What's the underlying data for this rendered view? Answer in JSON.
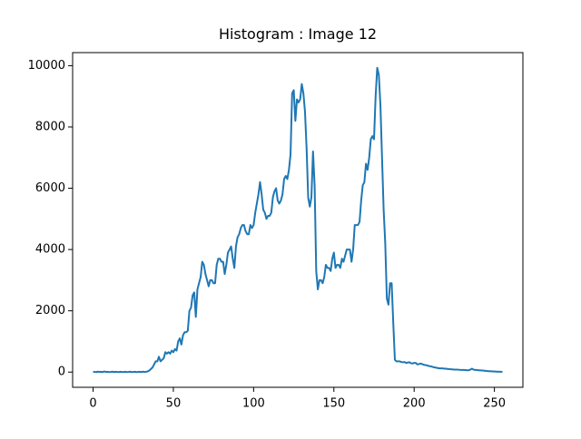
{
  "chart_data": {
    "type": "line",
    "title": "Histogram : Image 12",
    "color": "#1f77b4",
    "x": [
      0,
      1,
      2,
      3,
      4,
      5,
      6,
      7,
      8,
      9,
      10,
      11,
      12,
      13,
      14,
      15,
      16,
      17,
      18,
      19,
      20,
      21,
      22,
      23,
      24,
      25,
      26,
      27,
      28,
      29,
      30,
      31,
      32,
      33,
      34,
      35,
      36,
      37,
      38,
      39,
      40,
      41,
      42,
      43,
      44,
      45,
      46,
      47,
      48,
      49,
      50,
      51,
      52,
      53,
      54,
      55,
      56,
      57,
      58,
      59,
      60,
      61,
      62,
      63,
      64,
      65,
      66,
      67,
      68,
      69,
      70,
      71,
      72,
      73,
      74,
      75,
      76,
      77,
      78,
      79,
      80,
      81,
      82,
      83,
      84,
      85,
      86,
      87,
      88,
      89,
      90,
      91,
      92,
      93,
      94,
      95,
      96,
      97,
      98,
      99,
      100,
      101,
      102,
      103,
      104,
      105,
      106,
      107,
      108,
      109,
      110,
      111,
      112,
      113,
      114,
      115,
      116,
      117,
      118,
      119,
      120,
      121,
      122,
      123,
      124,
      125,
      126,
      127,
      128,
      129,
      130,
      131,
      132,
      133,
      134,
      135,
      136,
      137,
      138,
      139,
      140,
      141,
      142,
      143,
      144,
      145,
      146,
      147,
      148,
      149,
      150,
      151,
      152,
      153,
      154,
      155,
      156,
      157,
      158,
      159,
      160,
      161,
      162,
      163,
      164,
      165,
      166,
      167,
      168,
      169,
      170,
      171,
      172,
      173,
      174,
      175,
      176,
      177,
      178,
      179,
      180,
      181,
      182,
      183,
      184,
      185,
      186,
      187,
      188,
      189,
      190,
      191,
      192,
      193,
      194,
      195,
      196,
      197,
      198,
      199,
      200,
      201,
      202,
      203,
      204,
      205,
      206,
      207,
      208,
      209,
      210,
      211,
      212,
      213,
      214,
      215,
      216,
      217,
      218,
      219,
      220,
      221,
      222,
      223,
      224,
      225,
      226,
      227,
      228,
      229,
      230,
      231,
      232,
      233,
      234,
      235,
      236,
      237,
      238,
      239,
      240,
      241,
      242,
      243,
      244,
      245,
      246,
      247,
      248,
      249,
      250,
      251,
      252,
      253,
      254,
      255
    ],
    "values": [
      10,
      5,
      0,
      15,
      5,
      10,
      0,
      20,
      5,
      10,
      0,
      5,
      15,
      0,
      10,
      5,
      0,
      10,
      5,
      0,
      10,
      0,
      5,
      15,
      0,
      5,
      10,
      0,
      5,
      10,
      0,
      15,
      5,
      10,
      20,
      50,
      100,
      150,
      250,
      350,
      350,
      500,
      350,
      400,
      450,
      650,
      600,
      650,
      600,
      700,
      650,
      750,
      700,
      1000,
      1100,
      900,
      1200,
      1300,
      1300,
      1350,
      2000,
      2100,
      2500,
      2600,
      1800,
      2700,
      2900,
      3100,
      3600,
      3500,
      3200,
      3000,
      2800,
      3000,
      3000,
      2900,
      2900,
      3500,
      3700,
      3700,
      3600,
      3600,
      3200,
      3500,
      3900,
      4000,
      4100,
      3700,
      3400,
      4100,
      4400,
      4500,
      4700,
      4800,
      4800,
      4600,
      4500,
      4500,
      4800,
      4700,
      4800,
      5200,
      5500,
      5800,
      6200,
      5800,
      5300,
      5200,
      5000,
      5100,
      5100,
      5200,
      5700,
      5900,
      6000,
      5600,
      5500,
      5600,
      5800,
      6300,
      6400,
      6300,
      6600,
      7100,
      9100,
      9200,
      8200,
      8900,
      8800,
      8900,
      9400,
      9100,
      8500,
      7300,
      5700,
      5400,
      5700,
      7200,
      6100,
      3300,
      2700,
      3000,
      3000,
      2900,
      3100,
      3500,
      3400,
      3400,
      3300,
      3700,
      3900,
      3400,
      3500,
      3500,
      3400,
      3700,
      3600,
      3800,
      4000,
      4000,
      4000,
      3600,
      4000,
      4800,
      4800,
      4800,
      4900,
      5600,
      6100,
      6200,
      6800,
      6600,
      7000,
      7600,
      7700,
      7600,
      9000,
      9930,
      9700,
      8700,
      7000,
      5300,
      4200,
      2400,
      2200,
      2900,
      2900,
      1600,
      400,
      350,
      350,
      350,
      330,
      320,
      330,
      300,
      310,
      320,
      290,
      280,
      300,
      300,
      250,
      260,
      280,
      260,
      240,
      230,
      220,
      200,
      190,
      180,
      160,
      150,
      140,
      130,
      120,
      120,
      120,
      110,
      110,
      100,
      100,
      90,
      90,
      80,
      80,
      80,
      75,
      70,
      70,
      70,
      65,
      60,
      60,
      80,
      110,
      80,
      70,
      70,
      60,
      60,
      50,
      50,
      40,
      40,
      30,
      30,
      25,
      20,
      20,
      15,
      15,
      10,
      10,
      10
    ],
    "xlim": [
      -12.75,
      267.75
    ],
    "ylim": [
      -496.5,
      10426.5
    ],
    "xticks": [
      0,
      50,
      100,
      150,
      200,
      250
    ],
    "yticks": [
      0,
      2000,
      4000,
      6000,
      8000,
      10000
    ]
  }
}
